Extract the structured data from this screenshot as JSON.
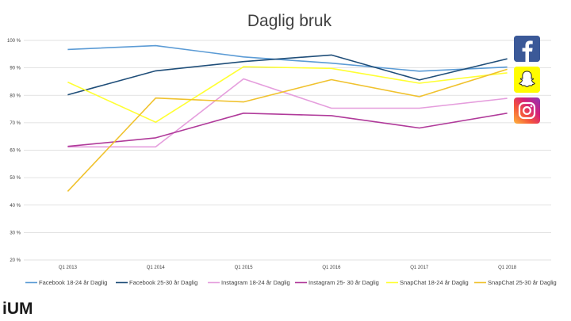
{
  "brand": {
    "logo_text": "iUM"
  },
  "icons": [
    "facebook-icon",
    "snapchat-icon",
    "instagram-icon"
  ],
  "chart_data": {
    "type": "line",
    "title": "Daglig  bruk",
    "xlabel": "",
    "ylabel": "",
    "x": [
      "Q1 2013",
      "Q1 2014",
      "Q1 2015",
      "Q1 2016",
      "Q1 2017",
      "Q1 2018"
    ],
    "yticks": [
      "100 %",
      "90 %",
      "80 %",
      "70 %",
      "60 %",
      "50 %",
      "40 %",
      "30 %",
      "20 %"
    ],
    "ylim": [
      20,
      100
    ],
    "grid": true,
    "legend_position": "bottom",
    "series": [
      {
        "name": "Facebook  18-24 år Daglig",
        "color": "#5b9bd5",
        "values": [
          96.7,
          98.1,
          94.0,
          91.7,
          88.8,
          90.3
        ]
      },
      {
        "name": "Facebook 25-30 år  Daglig",
        "color": "#1f4e79",
        "values": [
          80.2,
          88.9,
          92.3,
          94.7,
          85.6,
          93.3
        ]
      },
      {
        "name": "Instagram 18-24 år Daglig",
        "color": "#e59edd",
        "values": [
          61.2,
          61.2,
          86.0,
          75.3,
          75.3,
          78.9
        ]
      },
      {
        "name": "Instagram 25- 30 år Daglig",
        "color": "#b03a9a",
        "values": [
          61.4,
          64.5,
          73.5,
          72.6,
          68.1,
          73.5
        ]
      },
      {
        "name": "SnapChat 18-24 år Daglig",
        "color": "#ffff33",
        "values": [
          84.8,
          70.2,
          90.4,
          89.8,
          84.4,
          88.2
        ]
      },
      {
        "name": "SnapChat 25-30 år Daglig",
        "color": "#f0c22e",
        "values": [
          45.0,
          79.0,
          77.6,
          85.7,
          79.5,
          89.5
        ]
      }
    ]
  }
}
